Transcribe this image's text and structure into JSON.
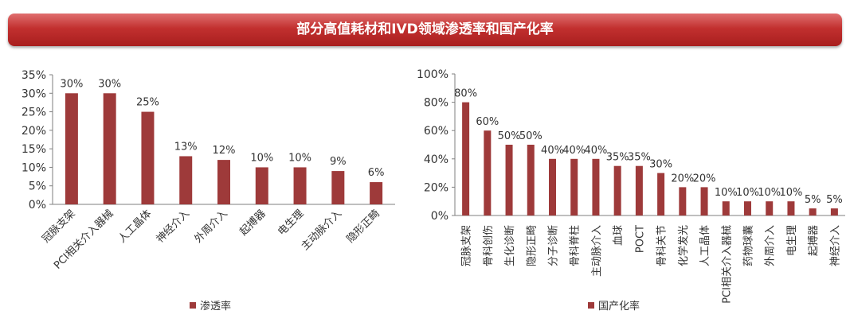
{
  "banner": {
    "title": "部分高值耗材和IVD领域渗透率和国产化率"
  },
  "colors": {
    "bar": "#9e3a3a",
    "banner": "#c2302f",
    "axis": "#7f7f7f"
  },
  "chart_data": [
    {
      "type": "bar",
      "categories": [
        "冠脉支架",
        "PCI相关介入器械",
        "人工晶体",
        "神经介入",
        "外周介入",
        "起搏器",
        "电生理",
        "主动脉介入",
        "隐形正畸"
      ],
      "series": [
        {
          "name": "渗透率",
          "values": [
            30,
            30,
            25,
            13,
            12,
            10,
            10,
            9,
            6
          ]
        }
      ],
      "data_labels": [
        "30%",
        "30%",
        "25%",
        "13%",
        "12%",
        "10%",
        "10%",
        "9%",
        "6%"
      ],
      "yticks": [
        "0%",
        "5%",
        "10%",
        "15%",
        "20%",
        "25%",
        "30%",
        "35%"
      ],
      "ylim": [
        0,
        35
      ],
      "grid": false,
      "legend_position": "bottom"
    },
    {
      "type": "bar",
      "categories": [
        "冠脉支架",
        "骨科创伤",
        "生化诊断",
        "隐形正畸",
        "分子诊断",
        "骨科脊柱",
        "主动脉介入",
        "血球",
        "POCT",
        "骨科关节",
        "化学发光",
        "人工晶体",
        "PCI相关介入器械",
        "药物球囊",
        "外周介入",
        "电生理",
        "起搏器",
        "神经介入"
      ],
      "series": [
        {
          "name": "国产化率",
          "values": [
            80,
            60,
            50,
            50,
            40,
            40,
            40,
            35,
            35,
            30,
            20,
            20,
            10,
            10,
            10,
            10,
            5,
            5
          ]
        }
      ],
      "data_labels": [
        "80%",
        "60%",
        "50%",
        "50%",
        "40%",
        "40%",
        "40%",
        "35%",
        "35%",
        "30%",
        "20%",
        "20%",
        "10%",
        "10%",
        "10%",
        "10%",
        "5%",
        "5%"
      ],
      "yticks": [
        "0%",
        "20%",
        "40%",
        "60%",
        "80%",
        "100%"
      ],
      "ylim": [
        0,
        100
      ],
      "grid": false,
      "legend_position": "bottom"
    }
  ]
}
